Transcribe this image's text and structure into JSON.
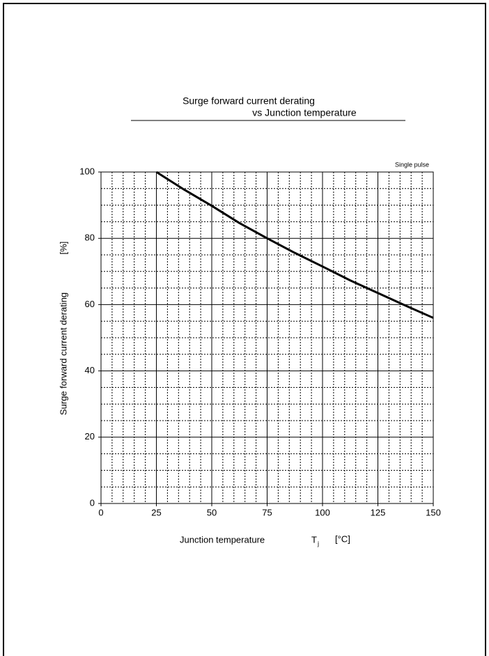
{
  "chart_data": {
    "type": "line",
    "title_lines": [
      "Surge forward current derating",
      "vs Junction temperature"
    ],
    "annotation": "Single pulse",
    "xlabel": "Junction temperature",
    "xsymbol": "T",
    "xsymbol_sub": "j",
    "xunit": "[°C]",
    "ylabel": "Surge forward current derating",
    "yunit": "[%]",
    "x": [
      25,
      37.5,
      50,
      62.5,
      75,
      87.5,
      100,
      112.5,
      125,
      137.5,
      150
    ],
    "series": [
      {
        "name": "Surge forward current derating",
        "color": "#000000",
        "values": [
          100,
          94.7,
          89.8,
          84.6,
          80,
          75.6,
          71.5,
          67.3,
          63.5,
          59.7,
          56
        ]
      }
    ],
    "xlim": [
      0,
      150
    ],
    "xticks": [
      0,
      25,
      50,
      75,
      100,
      125,
      150
    ],
    "ylim": [
      0,
      100
    ],
    "yticks": [
      0,
      20,
      40,
      60,
      80,
      100
    ],
    "grid": true,
    "minor_divisions": {
      "x": 5,
      "y": 4
    }
  }
}
